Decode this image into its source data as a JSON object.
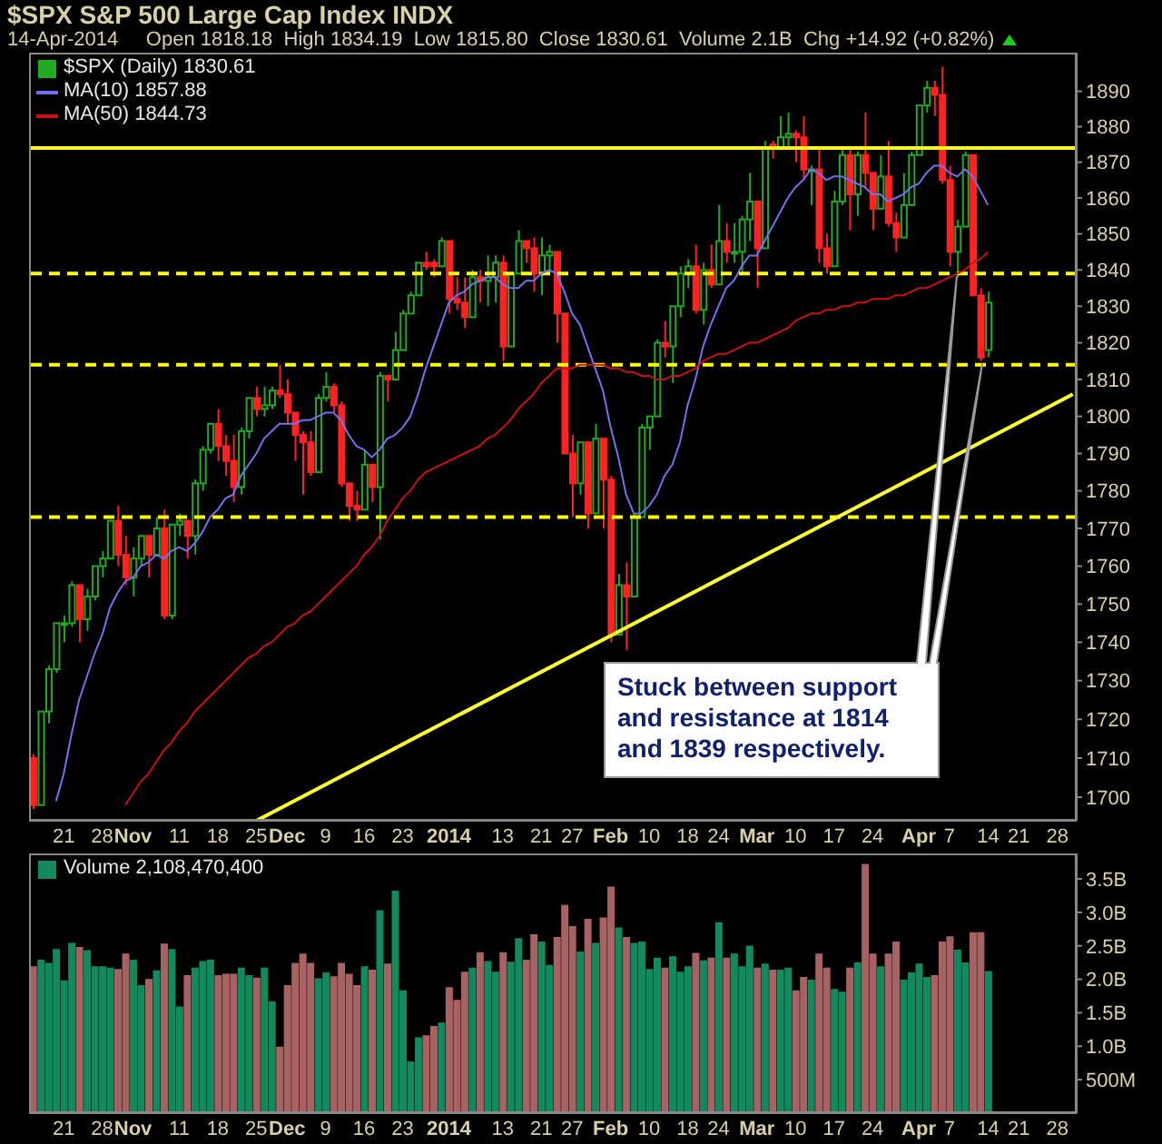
{
  "chart_data": [
    {
      "type": "candlestick",
      "title": "$SPX S&P 500 Large Cap Index INDX",
      "subtitle": "14-Apr-2014     Open 1818.18  High 1834.19  Low 1815.80  Close 1830.61  Volume 2.1B  Chg +14.92 (+0.82%)",
      "categories": [
        null,
        null,
        null,
        null,
        "21",
        null,
        null,
        null,
        null,
        "28",
        null,
        null,
        null,
        "Nov",
        null,
        null,
        null,
        null,
        null,
        "11",
        null,
        null,
        null,
        null,
        "18",
        null,
        null,
        null,
        null,
        "25",
        null,
        null,
        null,
        "Dec",
        null,
        null,
        null,
        null,
        "9",
        null,
        null,
        null,
        null,
        "16",
        null,
        null,
        null,
        null,
        "23",
        null,
        null,
        null,
        null,
        null,
        "2014",
        null,
        null,
        null,
        null,
        null,
        null,
        "13",
        null,
        null,
        null,
        null,
        "21",
        null,
        null,
        null,
        "27",
        null,
        null,
        null,
        null,
        "Feb",
        null,
        null,
        null,
        null,
        "10",
        null,
        null,
        null,
        null,
        "18",
        null,
        null,
        null,
        "24",
        null,
        null,
        null,
        null,
        "Mar",
        null,
        null,
        null,
        null,
        "10",
        null,
        null,
        null,
        null,
        "17",
        null,
        null,
        null,
        null,
        "24",
        null,
        null,
        null,
        null,
        null,
        "Apr",
        null,
        null,
        null,
        "7",
        null,
        null,
        null,
        null,
        "14",
        null,
        null,
        null,
        "21",
        null,
        null,
        null,
        null,
        "28",
        null,
        null
      ],
      "series": [
        {
          "name": "$SPX (Daily) 1830.61",
          "ohlc": [
            [
              1710,
              1711,
              1697,
              1698
            ],
            [
              1698,
              1722,
              1698,
              1722
            ],
            [
              1722,
              1734,
              1719,
              1733
            ],
            [
              1733,
              1745,
              1732,
              1745
            ],
            [
              1745,
              1747,
              1740,
              1745
            ],
            [
              1745,
              1756,
              1744,
              1755
            ],
            [
              1755,
              1755,
              1740,
              1746
            ],
            [
              1746,
              1754,
              1743,
              1752
            ],
            [
              1752,
              1760,
              1751,
              1760
            ],
            [
              1760,
              1764,
              1757,
              1762
            ],
            [
              1762,
              1772,
              1762,
              1772
            ],
            [
              1772,
              1776,
              1760,
              1763
            ],
            [
              1763,
              1768,
              1755,
              1757
            ],
            [
              1757,
              1765,
              1752,
              1762
            ],
            [
              1762,
              1768,
              1760,
              1768
            ],
            [
              1768,
              1768,
              1757,
              1763
            ],
            [
              1763,
              1773,
              1763,
              1770
            ],
            [
              1770,
              1775,
              1746,
              1747
            ],
            [
              1747,
              1771,
              1746,
              1771
            ],
            [
              1771,
              1774,
              1768,
              1772
            ],
            [
              1772,
              1772,
              1762,
              1768
            ],
            [
              1768,
              1783,
              1763,
              1782
            ],
            [
              1782,
              1792,
              1780,
              1791
            ],
            [
              1791,
              1798,
              1790,
              1798
            ],
            [
              1798,
              1802,
              1788,
              1792
            ],
            [
              1792,
              1795,
              1784,
              1788
            ],
            [
              1788,
              1795,
              1777,
              1781
            ],
            [
              1781,
              1797,
              1779,
              1796
            ],
            [
              1796,
              1805,
              1794,
              1805
            ],
            [
              1805,
              1808,
              1800,
              1802
            ],
            [
              1802,
              1808,
              1800,
              1803
            ],
            [
              1803,
              1808,
              1802,
              1807
            ],
            [
              1807,
              1814,
              1805,
              1806
            ],
            [
              1806,
              1810,
              1798,
              1801
            ],
            [
              1801,
              1801,
              1788,
              1795
            ],
            [
              1795,
              1796,
              1779,
              1793
            ],
            [
              1793,
              1796,
              1784,
              1785
            ],
            [
              1785,
              1806,
              1785,
              1805
            ],
            [
              1805,
              1812,
              1804,
              1808
            ],
            [
              1808,
              1809,
              1801,
              1803
            ],
            [
              1803,
              1804,
              1781,
              1782
            ],
            [
              1782,
              1782,
              1772,
              1776
            ],
            [
              1776,
              1780,
              1772,
              1775
            ],
            [
              1775,
              1791,
              1775,
              1787
            ],
            [
              1787,
              1787,
              1777,
              1781
            ],
            [
              1781,
              1812,
              1767,
              1811
            ],
            [
              1811,
              1811,
              1804,
              1810
            ],
            [
              1810,
              1823,
              1810,
              1818
            ],
            [
              1818,
              1829,
              1818,
              1828
            ],
            [
              1828,
              1834,
              1828,
              1833
            ],
            [
              1833,
              1842,
              1833,
              1842
            ],
            [
              1842,
              1845,
              1840,
              1841
            ],
            [
              1842,
              1843,
              1838,
              1841
            ],
            [
              1841,
              1849,
              1841,
              1848
            ],
            [
              1848,
              1848,
              1828,
              1832
            ],
            [
              1832,
              1838,
              1829,
              1831
            ],
            [
              1831,
              1838,
              1824,
              1827
            ],
            [
              1827,
              1840,
              1827,
              1838
            ],
            [
              1838,
              1840,
              1831,
              1837
            ],
            [
              1837,
              1844,
              1830,
              1838
            ],
            [
              1838,
              1844,
              1831,
              1842
            ],
            [
              1842,
              1844,
              1815,
              1819
            ],
            [
              1819,
              1839,
              1819,
              1839
            ],
            [
              1839,
              1851,
              1839,
              1848
            ],
            [
              1848,
              1848,
              1842,
              1846
            ],
            [
              1846,
              1849,
              1834,
              1839
            ],
            [
              1839,
              1849,
              1833,
              1844
            ],
            [
              1844,
              1847,
              1839,
              1845
            ],
            [
              1845,
              1845,
              1820,
              1828
            ],
            [
              1828,
              1828,
              1790,
              1790
            ],
            [
              1790,
              1795,
              1773,
              1782
            ],
            [
              1782,
              1793,
              1779,
              1793
            ],
            [
              1793,
              1793,
              1770,
              1774
            ],
            [
              1774,
              1798,
              1774,
              1794
            ],
            [
              1794,
              1794,
              1770,
              1783
            ],
            [
              1783,
              1784,
              1740,
              1742
            ],
            [
              1742,
              1758,
              1742,
              1755
            ],
            [
              1755,
              1761,
              1738,
              1752
            ],
            [
              1752,
              1774,
              1752,
              1773
            ],
            [
              1773,
              1798,
              1773,
              1797
            ],
            [
              1797,
              1800,
              1791,
              1800
            ],
            [
              1800,
              1821,
              1800,
              1820
            ],
            [
              1820,
              1826,
              1816,
              1819
            ],
            [
              1819,
              1830,
              1809,
              1830
            ],
            [
              1830,
              1841,
              1827,
              1839
            ],
            [
              1839,
              1843,
              1835,
              1841
            ],
            [
              1841,
              1847,
              1828,
              1829
            ],
            [
              1829,
              1842,
              1825,
              1840
            ],
            [
              1840,
              1847,
              1835,
              1836
            ],
            [
              1836,
              1858,
              1836,
              1848
            ],
            [
              1848,
              1853,
              1842,
              1845
            ],
            [
              1845,
              1853,
              1842,
              1845
            ],
            [
              1845,
              1855,
              1839,
              1854
            ],
            [
              1854,
              1867,
              1848,
              1859
            ],
            [
              1859,
              1859,
              1835,
              1846
            ],
            [
              1846,
              1876,
              1846,
              1874
            ],
            [
              1875,
              1876,
              1871,
              1874
            ],
            [
              1874,
              1883,
              1874,
              1877
            ],
            [
              1877,
              1884,
              1874,
              1878
            ],
            [
              1878,
              1879,
              1870,
              1877
            ],
            [
              1877,
              1883,
              1865,
              1868
            ],
            [
              1868,
              1869,
              1858,
              1868
            ],
            [
              1868,
              1874,
              1842,
              1846
            ],
            [
              1846,
              1850,
              1839,
              1841
            ],
            [
              1841,
              1862,
              1841,
              1859
            ],
            [
              1859,
              1874,
              1858,
              1872
            ],
            [
              1872,
              1874,
              1851,
              1861
            ],
            [
              1861,
              1873,
              1855,
              1872
            ],
            [
              1872,
              1884,
              1863,
              1867
            ],
            [
              1867,
              1867,
              1851,
              1857
            ],
            [
              1857,
              1872,
              1857,
              1866
            ],
            [
              1866,
              1876,
              1852,
              1853
            ],
            [
              1853,
              1856,
              1845,
              1849
            ],
            [
              1849,
              1867,
              1849,
              1858
            ],
            [
              1858,
              1873,
              1858,
              1872
            ],
            [
              1872,
              1886,
              1872,
              1886
            ],
            [
              1886,
              1893,
              1884,
              1891
            ],
            [
              1891,
              1893,
              1883,
              1889
            ],
            [
              1889,
              1897,
              1864,
              1865
            ],
            [
              1865,
              1869,
              1841,
              1845
            ],
            [
              1845,
              1854,
              1838,
              1852
            ],
            [
              1852,
              1873,
              1852,
              1872
            ],
            [
              1872,
              1872,
              1833,
              1833
            ],
            [
              1833,
              1835,
              1815,
              1816
            ],
            [
              1818,
              1834,
              1816,
              1831
            ],
            null,
            null,
            null,
            null,
            null,
            null,
            null,
            null,
            null,
            null,
            null
          ],
          "colors": [
            "#ff2222",
            "#22aa22",
            "#22aa22",
            "#22aa22",
            "#22aa22",
            "#22aa22",
            "#ff2222",
            "#22aa22",
            "#22aa22",
            "#22aa22",
            "#22aa22",
            "#ff2222",
            "#ff2222",
            "#22aa22",
            "#22aa22",
            "#ff2222",
            "#22aa22",
            "#ff2222",
            "#22aa22",
            "#22aa22",
            "#ff2222",
            "#22aa22",
            "#22aa22",
            "#22aa22",
            "#ff2222",
            "#ff2222",
            "#ff2222",
            "#22aa22",
            "#22aa22",
            "#ff2222",
            "#22aa22",
            "#22aa22",
            "#ff2222",
            "#ff2222",
            "#ff2222",
            "#ff2222",
            "#ff2222",
            "#22aa22",
            "#22aa22",
            "#ff2222",
            "#ff2222",
            "#ff2222",
            "#ff2222",
            "#22aa22",
            "#ff2222",
            "#22aa22",
            "#ff2222",
            "#22aa22",
            "#22aa22",
            "#22aa22",
            "#22aa22",
            "#ff2222",
            "#ff2222",
            "#22aa22",
            "#ff2222",
            "#ff2222",
            "#ff2222",
            "#22aa22",
            "#ff2222",
            "#22aa22",
            "#22aa22",
            "#ff2222",
            "#22aa22",
            "#22aa22",
            "#ff2222",
            "#ff2222",
            "#22aa22",
            "#22aa22",
            "#ff2222",
            "#ff2222",
            "#ff2222",
            "#22aa22",
            "#ff2222",
            "#22aa22",
            "#ff2222",
            "#ff2222",
            "#22aa22",
            "#ff2222",
            "#22aa22",
            "#22aa22",
            "#22aa22",
            "#22aa22",
            "#ff2222",
            "#22aa22",
            "#22aa22",
            "#22aa22",
            "#ff2222",
            "#22aa22",
            "#ff2222",
            "#22aa22",
            "#ff2222",
            "#22aa22",
            "#22aa22",
            "#22aa22",
            "#ff2222",
            "#22aa22",
            "#ff2222",
            "#22aa22",
            "#22aa22",
            "#ff2222",
            "#ff2222",
            "#22aa22",
            "#ff2222",
            "#ff2222",
            "#22aa22",
            "#22aa22",
            "#ff2222",
            "#22aa22",
            "#ff2222",
            "#ff2222",
            "#22aa22",
            "#ff2222",
            "#ff2222",
            "#22aa22",
            "#22aa22",
            "#22aa22",
            "#22aa22",
            "#ff2222",
            "#ff2222",
            "#ff2222",
            "#22aa22",
            "#22aa22",
            "#ff2222",
            "#ff2222",
            "#22aa22",
            null,
            null,
            null,
            null,
            null,
            null,
            null,
            null,
            null,
            null,
            null
          ]
        },
        {
          "name": "MA(10) 1857.88",
          "type": "line",
          "color": "#7272ee",
          "values": [
            null,
            null,
            null,
            1699,
            1706,
            1716,
            1725,
            1731,
            1737,
            1742,
            1749,
            1753,
            1756,
            1757,
            1760,
            1761,
            1763,
            1762,
            1764,
            1765,
            1764,
            1766,
            1769,
            1773,
            1775,
            1778,
            1779,
            1784,
            1787,
            1790,
            1794,
            1796,
            1798,
            1798,
            1798,
            1799,
            1799,
            1800,
            1801,
            1801,
            1799,
            1795,
            1792,
            1791,
            1789,
            1791,
            1794,
            1795,
            1797,
            1800,
            1806,
            1813,
            1819,
            1825,
            1831,
            1833,
            1834,
            1836,
            1837,
            1838,
            1838,
            1836,
            1835,
            1835,
            1837,
            1837,
            1839,
            1840,
            1839,
            1834,
            1828,
            1825,
            1819,
            1813,
            1807,
            1797,
            1789,
            1779,
            1774,
            1774,
            1776,
            1779,
            1784,
            1787,
            1793,
            1803,
            1810,
            1819,
            1825,
            1830,
            1835,
            1837,
            1841,
            1844,
            1844,
            1848,
            1852,
            1856,
            1860,
            1863,
            1865,
            1868,
            1867,
            1865,
            1866,
            1866,
            1865,
            1864,
            1863,
            1861,
            1861,
            1859,
            1860,
            1861,
            1863,
            1864,
            1867,
            1869,
            1869,
            1867,
            1866,
            1868,
            1866,
            1862,
            1858,
            null,
            null,
            null,
            null,
            null,
            null,
            null,
            null,
            null,
            null,
            null
          ]
        },
        {
          "name": "MA(50) 1844.73",
          "type": "line",
          "color": "#cc1111",
          "values": [
            null,
            null,
            null,
            null,
            null,
            null,
            null,
            null,
            null,
            null,
            null,
            null,
            1698,
            1701,
            1704,
            1706,
            1709,
            1712,
            1714,
            1717,
            1719,
            1722,
            1724,
            1726,
            1728,
            1730,
            1732,
            1734,
            1736,
            1737,
            1739,
            1740,
            1742,
            1744,
            1745,
            1747,
            1748,
            1750,
            1752,
            1754,
            1756,
            1758,
            1760,
            1763,
            1765,
            1768,
            1772,
            1775,
            1778,
            1780,
            1783,
            1785,
            1786,
            1787,
            1788,
            1789,
            1790,
            1791,
            1792,
            1794,
            1795,
            1797,
            1799,
            1802,
            1804,
            1806,
            1809,
            1811,
            1813,
            1813,
            1813,
            1814,
            1814,
            1814,
            1814,
            1813,
            1813,
            1812,
            1812,
            1811,
            1811,
            1810,
            1810,
            1811,
            1811,
            1812,
            1813,
            1815,
            1816,
            1817,
            1817,
            1818,
            1819,
            1820,
            1820,
            1821,
            1822,
            1823,
            1824,
            1826,
            1827,
            1828,
            1828,
            1829,
            1829,
            1830,
            1830,
            1831,
            1831,
            1832,
            1832,
            1832,
            1833,
            1833,
            1834,
            1835,
            1835,
            1836,
            1837,
            1838,
            1839,
            1840,
            1842,
            1843,
            1845,
            null,
            null,
            null,
            null,
            null,
            null,
            null,
            null,
            null,
            null,
            null
          ]
        },
        {
          "type": "line",
          "color": "#ffff33",
          "values": [
            null,
            null,
            null,
            null,
            null,
            null,
            null,
            null,
            null,
            null,
            null,
            null,
            null,
            null,
            null,
            null,
            null,
            null,
            null,
            null,
            null,
            null,
            null,
            null,
            null,
            null,
            null,
            null,
            null,
            1694,
            null,
            null,
            null,
            null,
            null,
            null,
            null,
            null,
            null,
            null,
            null,
            null,
            null,
            null,
            null,
            null,
            null,
            null,
            null,
            null,
            null,
            null,
            null,
            null,
            null,
            null,
            null,
            null,
            null,
            null,
            null,
            null,
            null,
            null,
            null,
            null,
            null,
            null,
            null,
            null,
            null,
            null,
            null,
            null,
            null,
            null,
            null,
            null,
            null,
            null,
            null,
            null,
            null,
            null,
            null,
            null,
            null,
            null,
            null,
            null,
            null,
            null,
            null,
            null,
            null,
            null,
            null,
            null,
            null,
            null,
            null,
            null,
            null,
            null,
            null,
            null,
            null,
            null,
            null,
            null,
            null,
            null,
            null,
            null,
            null,
            null,
            null,
            null,
            null,
            null,
            null,
            null,
            null,
            null,
            null,
            null,
            null,
            null,
            null,
            null,
            null,
            null,
            null,
            null,
            null,
            1806
          ]
        }
      ],
      "ylim": [
        1694,
        1901
      ],
      "yticks": [
        1700,
        1710,
        1720,
        1730,
        1740,
        1750,
        1760,
        1770,
        1780,
        1790,
        1800,
        1810,
        1820,
        1830,
        1840,
        1850,
        1860,
        1870,
        1880,
        1890
      ],
      "log": true,
      "ref_lines": [
        {
          "axis": "y",
          "value": 1874,
          "color": "#ffff00",
          "line_style": "solid"
        },
        {
          "axis": "y",
          "value": 1839,
          "color": "#ffff00",
          "line_style": "dashed"
        },
        {
          "axis": "y",
          "value": 1814,
          "color": "#ffff00",
          "line_style": "dashed"
        },
        {
          "axis": "y",
          "value": 1773,
          "color": "#ffff00",
          "line_style": "dashed"
        }
      ],
      "annotations": [
        "Stuck between support and resistance at 1814 and 1839 respectively."
      ],
      "legend": "top left"
    },
    {
      "type": "bar",
      "categories": [
        null,
        null,
        null,
        null,
        "21",
        null,
        null,
        null,
        null,
        "28",
        null,
        null,
        null,
        "Nov",
        null,
        null,
        null,
        null,
        null,
        "11",
        null,
        null,
        null,
        null,
        "18",
        null,
        null,
        null,
        null,
        "25",
        null,
        null,
        null,
        "Dec",
        null,
        null,
        null,
        null,
        "9",
        null,
        null,
        null,
        null,
        "16",
        null,
        null,
        null,
        null,
        "23",
        null,
        null,
        null,
        null,
        null,
        "2014",
        null,
        null,
        null,
        null,
        null,
        null,
        "13",
        null,
        null,
        null,
        null,
        "21",
        null,
        null,
        null,
        "27",
        null,
        null,
        null,
        null,
        "Feb",
        null,
        null,
        null,
        null,
        "10",
        null,
        null,
        null,
        null,
        "18",
        null,
        null,
        null,
        "24",
        null,
        null,
        null,
        null,
        "Mar",
        null,
        null,
        null,
        null,
        "10",
        null,
        null,
        null,
        null,
        "17",
        null,
        null,
        null,
        null,
        "24",
        null,
        null,
        null,
        null,
        null,
        "Apr",
        null,
        null,
        null,
        "7",
        null,
        null,
        null,
        null,
        "14",
        null,
        null,
        null,
        "21",
        null,
        null,
        null,
        null,
        "28",
        null,
        null
      ],
      "series": [
        {
          "name": "Volume 2,108,470,400",
          "values": [
            2180000000,
            2280000000,
            2230000000,
            2440000000,
            1970000000,
            2530000000,
            2470000000,
            2420000000,
            2180000000,
            2180000000,
            2160000000,
            2140000000,
            2370000000,
            2280000000,
            1900000000,
            1990000000,
            2120000000,
            2520000000,
            2440000000,
            1580000000,
            2050000000,
            2160000000,
            2260000000,
            2280000000,
            2050000000,
            2070000000,
            2070000000,
            2160000000,
            2050000000,
            2010000000,
            2160000000,
            1660000000,
            980000000,
            1900000000,
            2230000000,
            2370000000,
            2230000000,
            2000000000,
            2090000000,
            2030000000,
            2230000000,
            2070000000,
            1900000000,
            2180000000,
            2130000000,
            3020000000,
            2220000000,
            3310000000,
            1820000000,
            760000000,
            1120000000,
            1150000000,
            1290000000,
            1340000000,
            1870000000,
            1680000000,
            2100000000,
            2160000000,
            2390000000,
            2260000000,
            2100000000,
            2390000000,
            2250000000,
            2600000000,
            2280000000,
            2660000000,
            2550000000,
            2200000000,
            2620000000,
            3100000000,
            2780000000,
            2400000000,
            2890000000,
            2530000000,
            2910000000,
            3370000000,
            2760000000,
            2620000000,
            2530000000,
            2550000000,
            2140000000,
            2310000000,
            2160000000,
            2330000000,
            2100000000,
            2180000000,
            2380000000,
            2270000000,
            2310000000,
            2840000000,
            2310000000,
            2370000000,
            2180000000,
            2490000000,
            2160000000,
            2220000000,
            2130000000,
            2130000000,
            2160000000,
            1820000000,
            2020000000,
            1980000000,
            2370000000,
            2160000000,
            1840000000,
            1800000000,
            2160000000,
            2240000000,
            3710000000,
            2370000000,
            2180000000,
            2370000000,
            2550000000,
            1980000000,
            2090000000,
            2220000000,
            2020000000,
            2050000000,
            2550000000,
            2630000000,
            2430000000,
            2240000000,
            2690000000,
            2690000000,
            2110000000,
            null,
            null,
            null,
            null,
            null,
            null,
            null,
            null,
            null,
            null,
            null
          ],
          "colors": [
            "#a86262",
            "#138a5e",
            "#138a5e",
            "#138a5e",
            "#138a5e",
            "#138a5e",
            "#a86262",
            "#138a5e",
            "#138a5e",
            "#138a5e",
            "#138a5e",
            "#a86262",
            "#a86262",
            "#138a5e",
            "#138a5e",
            "#a86262",
            "#138a5e",
            "#a86262",
            "#138a5e",
            "#138a5e",
            "#a86262",
            "#138a5e",
            "#138a5e",
            "#138a5e",
            "#a86262",
            "#a86262",
            "#a86262",
            "#138a5e",
            "#138a5e",
            "#a86262",
            "#138a5e",
            "#138a5e",
            "#a86262",
            "#a86262",
            "#a86262",
            "#a86262",
            "#a86262",
            "#138a5e",
            "#138a5e",
            "#a86262",
            "#a86262",
            "#a86262",
            "#a86262",
            "#138a5e",
            "#a86262",
            "#138a5e",
            "#a86262",
            "#138a5e",
            "#138a5e",
            "#138a5e",
            "#138a5e",
            "#a86262",
            "#a86262",
            "#138a5e",
            "#a86262",
            "#a86262",
            "#a86262",
            "#138a5e",
            "#a86262",
            "#138a5e",
            "#138a5e",
            "#a86262",
            "#138a5e",
            "#138a5e",
            "#a86262",
            "#a86262",
            "#138a5e",
            "#138a5e",
            "#a86262",
            "#a86262",
            "#a86262",
            "#138a5e",
            "#a86262",
            "#138a5e",
            "#a86262",
            "#a86262",
            "#138a5e",
            "#a86262",
            "#138a5e",
            "#138a5e",
            "#138a5e",
            "#138a5e",
            "#a86262",
            "#138a5e",
            "#138a5e",
            "#138a5e",
            "#a86262",
            "#138a5e",
            "#a86262",
            "#138a5e",
            "#a86262",
            "#138a5e",
            "#138a5e",
            "#138a5e",
            "#a86262",
            "#138a5e",
            "#a86262",
            "#138a5e",
            "#138a5e",
            "#a86262",
            "#a86262",
            "#138a5e",
            "#a86262",
            "#a86262",
            "#138a5e",
            "#138a5e",
            "#a86262",
            "#138a5e",
            "#a86262",
            "#a86262",
            "#138a5e",
            "#a86262",
            "#a86262",
            "#138a5e",
            "#138a5e",
            "#138a5e",
            "#138a5e",
            "#a86262",
            "#a86262",
            "#a86262",
            "#138a5e",
            "#138a5e",
            "#a86262",
            "#a86262",
            "#138a5e",
            null,
            null,
            null,
            null,
            null,
            null,
            null,
            null,
            null,
            null,
            null
          ]
        }
      ],
      "ylim": [
        0,
        3880000000
      ],
      "yticks": [
        {
          "value": 500000000,
          "label": "500M"
        },
        {
          "value": 1000000000,
          "label": "1.0B"
        },
        {
          "value": 1500000000,
          "label": "1.5B"
        },
        {
          "value": 2000000000,
          "label": "2.0B"
        },
        {
          "value": 2500000000,
          "label": "2.5B"
        },
        {
          "value": 3000000000,
          "label": "3.0B"
        },
        {
          "value": 3500000000,
          "label": "3.5B"
        }
      ],
      "legend": "top left"
    }
  ]
}
